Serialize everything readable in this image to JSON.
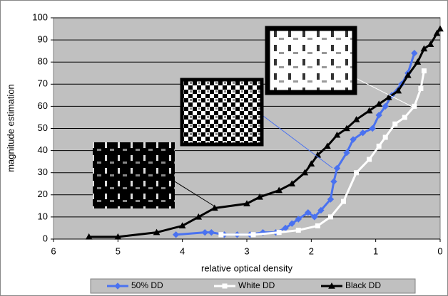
{
  "chart_data": {
    "type": "line",
    "x_label": "relative optical density",
    "y_label": "magnitude estimation",
    "xlim": [
      6,
      0
    ],
    "xticks": [
      6,
      5,
      4,
      3,
      2,
      1,
      0
    ],
    "ylim": [
      0,
      100
    ],
    "yticks": [
      0,
      10,
      20,
      30,
      40,
      50,
      60,
      70,
      80,
      90,
      100
    ],
    "grid": true,
    "legend": "bottom",
    "series": [
      {
        "name": "50% DD",
        "color": "#4a72f0",
        "marker": "diamond",
        "x": [
          4.1,
          3.65,
          3.55,
          3.35,
          3.15,
          2.95,
          2.75,
          2.55,
          2.4,
          2.3,
          2.2,
          2.05,
          1.95,
          1.85,
          1.7,
          1.65,
          1.6,
          1.45,
          1.35,
          1.2,
          1.05,
          0.95,
          0.85,
          0.75,
          0.6,
          0.5,
          0.4
        ],
        "values": [
          2,
          3,
          3,
          2,
          2,
          2,
          3,
          3,
          5,
          7,
          9,
          12,
          10,
          13,
          18,
          26,
          32,
          39,
          45,
          48,
          50,
          56,
          60,
          65,
          70,
          75,
          84
        ]
      },
      {
        "name": "White DD",
        "color": "#ffffff",
        "marker": "square",
        "x": [
          3.4,
          2.9,
          2.5,
          2.2,
          1.9,
          1.7,
          1.5,
          1.3,
          1.1,
          0.95,
          0.85,
          0.7,
          0.55,
          0.4,
          0.3,
          0.25
        ],
        "values": [
          2,
          2,
          3,
          4,
          6,
          10,
          17,
          30,
          36,
          42,
          46,
          52,
          55,
          60,
          68,
          76
        ]
      },
      {
        "name": "Black DD",
        "color": "#000000",
        "marker": "triangle",
        "x": [
          5.45,
          5.0,
          4.4,
          4.0,
          3.75,
          3.5,
          3.0,
          2.8,
          2.5,
          2.3,
          2.1,
          2.0,
          1.9,
          1.75,
          1.6,
          1.45,
          1.3,
          1.1,
          0.95,
          0.8,
          0.65,
          0.5,
          0.35,
          0.25,
          0.15,
          0.05,
          0.0
        ],
        "values": [
          1,
          1,
          3,
          6,
          10,
          14,
          16,
          19,
          22,
          25,
          30,
          34,
          38,
          42,
          47,
          50,
          54,
          58,
          61,
          64,
          67,
          74,
          80,
          86,
          88,
          93,
          95
        ]
      }
    ]
  }
}
